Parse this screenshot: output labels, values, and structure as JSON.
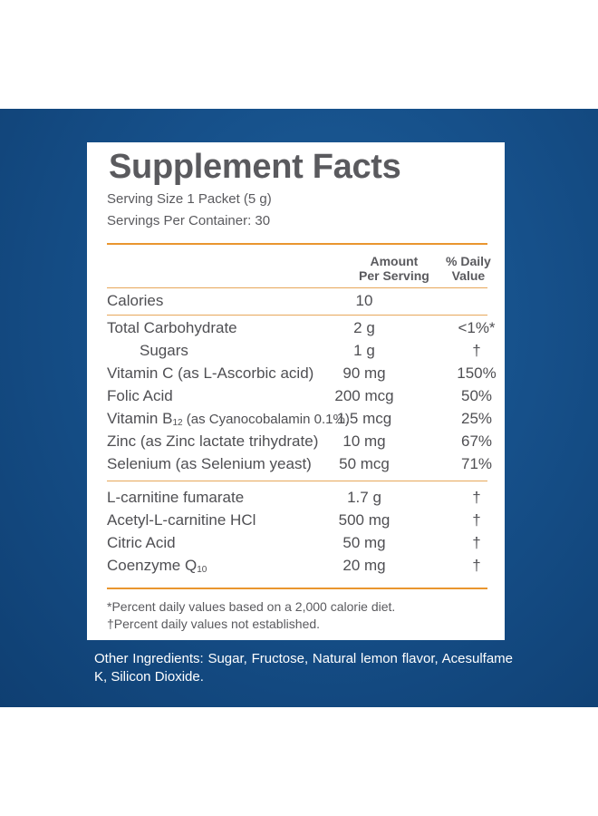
{
  "panel": {
    "title": "Supplement Facts",
    "serving_size": "Serving Size 1 Packet (5 g)",
    "servings_per_container": "Servings Per Container: 30",
    "column_amount_line1": "Amount",
    "column_amount_line2": "Per Serving",
    "column_dv_line1": "% Daily",
    "column_dv_line2": "Value"
  },
  "rows": [
    {
      "name": "Calories",
      "amount": "10",
      "dv": ""
    },
    {
      "name": "Total Carbohydrate",
      "amount": "2 g",
      "dv": "<1%*"
    },
    {
      "name": "Sugars",
      "amount": "1 g",
      "dv": "†"
    },
    {
      "name": "Vitamin C (as L-Ascorbic acid)",
      "amount": "90 mg",
      "dv": "150%"
    },
    {
      "name": "Folic Acid",
      "amount": "200 mcg",
      "dv": "50%"
    },
    {
      "name_prefix": "Vitamin B",
      "name_sub": "12",
      "name_suffix": " (as Cyanocobalamin 0.1%)",
      "amount": "1.5 mcg",
      "dv": "25%"
    },
    {
      "name": "Zinc (as Zinc lactate trihydrate)",
      "amount": "10 mg",
      "dv": "67%"
    },
    {
      "name": "Selenium (as Selenium yeast)",
      "amount": "50 mcg",
      "dv": "71%"
    },
    {
      "name": "L-carnitine fumarate",
      "amount": "1.7 g",
      "dv": "†"
    },
    {
      "name": "Acetyl-L-carnitine HCl",
      "amount": "500 mg",
      "dv": "†"
    },
    {
      "name": "Citric Acid",
      "amount": "50 mg",
      "dv": "†"
    },
    {
      "name_prefix": "Coenzyme Q",
      "name_sub": "10",
      "amount": "20 mg",
      "dv": "†"
    }
  ],
  "footnotes": {
    "percent_note": "*Percent daily values based on a 2,000 calorie diet.",
    "dagger_note": "†Percent daily values not established."
  },
  "other_ingredients": "Other Ingredients: Sugar, Fructose, Natural lemon flavor, Acesulfame K, Silicon Dioxide.",
  "colors": {
    "background_blue": "#16508a",
    "accent_orange": "#e9962f",
    "text_gray": "#5a5a5e"
  }
}
